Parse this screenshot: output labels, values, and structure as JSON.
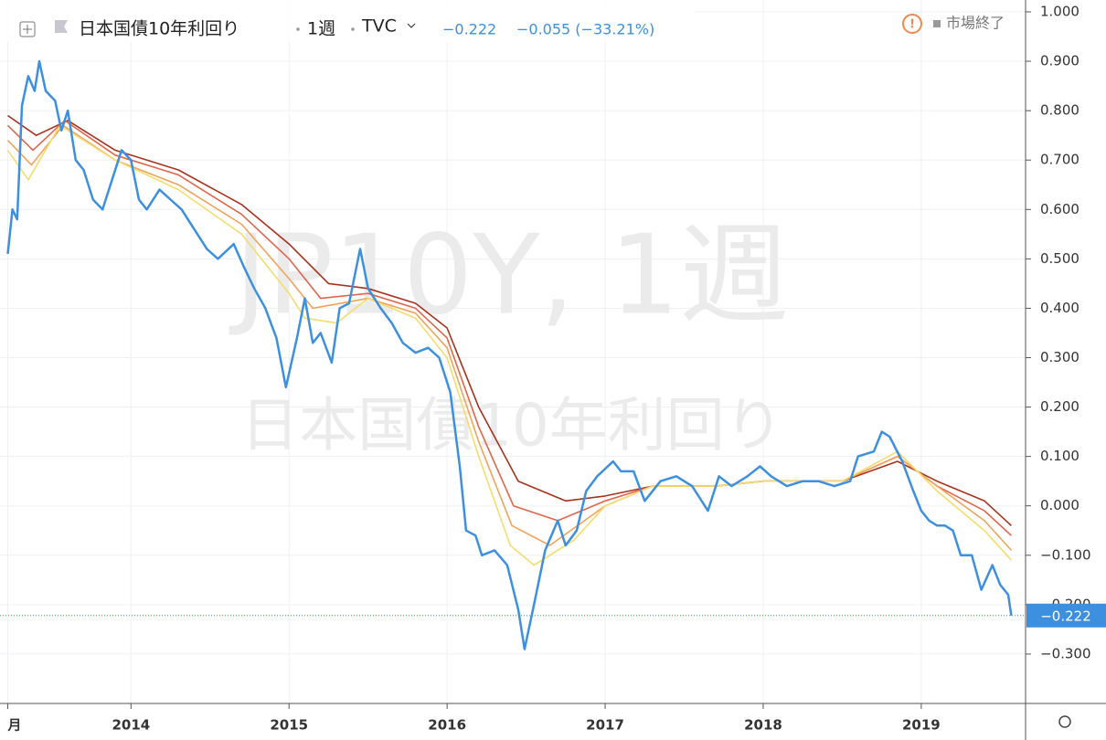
{
  "chart_data": {
    "type": "line",
    "title": "日本国債10年利回り",
    "interval": "1週",
    "exchange": "TVC",
    "last_value_label": "−0.222",
    "change_label": "−0.055 (−33.21%)",
    "status": "市場終了",
    "watermark": "JP10Y, 1週",
    "watermark_subtitle": "日本国債10年利回り",
    "grid": true,
    "xlim": [
      2013.2,
      2019.66
    ],
    "ylim": [
      -0.4,
      1.024
    ],
    "xticks": [
      {
        "value": 2013.22,
        "label": "月"
      },
      2014,
      2015,
      2016,
      2017,
      2018,
      2019
    ],
    "yticks": [
      {
        "value": 1,
        "label": "1.000"
      },
      {
        "value": 0.9,
        "label": "0.900"
      },
      {
        "value": 0.8,
        "label": "0.800"
      },
      {
        "value": 0.7,
        "label": "0.700"
      },
      {
        "value": 0.6,
        "label": "0.600"
      },
      {
        "value": 0.5,
        "label": "0.500"
      },
      {
        "value": 0.4,
        "label": "0.400"
      },
      {
        "value": 0.3,
        "label": "0.300"
      },
      {
        "value": 0.2,
        "label": "0.200"
      },
      {
        "value": 0.1,
        "label": "0.100"
      },
      {
        "value": 0,
        "label": "0.000"
      },
      {
        "value": -0.1,
        "label": "−0.100"
      },
      {
        "value": -0.2,
        "label": "−0.200"
      },
      {
        "value": -0.3,
        "label": "−0.300"
      }
    ],
    "series": [
      {
        "color": "#a8321e",
        "x": [
          2013.22,
          2013.4,
          2013.6,
          2013.9,
          2014.3,
          2014.7,
          2015.0,
          2015.25,
          2015.5,
          2015.8,
          2016.0,
          2016.2,
          2016.45,
          2016.75,
          2017.0,
          2017.3,
          2017.7,
          2018.0,
          2018.5,
          2018.85,
          2019.1,
          2019.4,
          2019.57
        ],
        "values": [
          0.79,
          0.75,
          0.78,
          0.72,
          0.68,
          0.61,
          0.53,
          0.45,
          0.44,
          0.41,
          0.36,
          0.2,
          0.05,
          0.01,
          0.02,
          0.04,
          0.04,
          0.05,
          0.05,
          0.09,
          0.05,
          0.01,
          -0.04
        ]
      },
      {
        "color": "#e2654b",
        "x": [
          2013.22,
          2013.38,
          2013.58,
          2013.9,
          2014.3,
          2014.7,
          2015.0,
          2015.2,
          2015.5,
          2015.8,
          2016.0,
          2016.2,
          2016.42,
          2016.7,
          2017.0,
          2017.3,
          2017.7,
          2018.0,
          2018.5,
          2018.85,
          2019.1,
          2019.4,
          2019.57
        ],
        "values": [
          0.77,
          0.72,
          0.78,
          0.71,
          0.67,
          0.59,
          0.5,
          0.42,
          0.43,
          0.4,
          0.34,
          0.16,
          0.0,
          -0.03,
          0.01,
          0.04,
          0.04,
          0.05,
          0.05,
          0.1,
          0.04,
          -0.01,
          -0.06
        ]
      },
      {
        "color": "#f2a35a",
        "x": [
          2013.22,
          2013.37,
          2013.57,
          2013.9,
          2014.3,
          2014.7,
          2015.0,
          2015.15,
          2015.5,
          2015.8,
          2016.0,
          2016.2,
          2016.41,
          2016.65,
          2017.0,
          2017.3,
          2017.7,
          2018.0,
          2018.5,
          2018.85,
          2019.1,
          2019.4,
          2019.57
        ],
        "values": [
          0.74,
          0.69,
          0.77,
          0.7,
          0.65,
          0.57,
          0.46,
          0.4,
          0.42,
          0.39,
          0.32,
          0.13,
          -0.04,
          -0.08,
          0.0,
          0.04,
          0.04,
          0.05,
          0.05,
          0.1,
          0.04,
          -0.03,
          -0.09
        ]
      },
      {
        "color": "#f4dd6e",
        "x": [
          2013.22,
          2013.35,
          2013.55,
          2013.9,
          2014.3,
          2014.7,
          2015.0,
          2015.1,
          2015.3,
          2015.5,
          2015.8,
          2016.0,
          2016.2,
          2016.4,
          2016.55,
          2016.8,
          2017.0,
          2017.3,
          2017.7,
          2018.0,
          2018.5,
          2018.85,
          2019.1,
          2019.4,
          2019.57
        ],
        "values": [
          0.72,
          0.66,
          0.77,
          0.7,
          0.64,
          0.55,
          0.43,
          0.38,
          0.37,
          0.42,
          0.38,
          0.3,
          0.1,
          -0.08,
          -0.12,
          -0.07,
          0.0,
          0.04,
          0.04,
          0.05,
          0.05,
          0.11,
          0.03,
          -0.05,
          -0.11
        ]
      },
      {
        "color": "#3d8fe0",
        "x": [
          2013.22,
          2013.25,
          2013.28,
          2013.31,
          2013.35,
          2013.39,
          2013.42,
          2013.46,
          2013.52,
          2013.56,
          2013.6,
          2013.65,
          2013.7,
          2013.76,
          2013.82,
          2013.88,
          2013.94,
          2014.0,
          2014.05,
          2014.1,
          2014.18,
          2014.25,
          2014.32,
          2014.4,
          2014.48,
          2014.55,
          2014.65,
          2014.72,
          2014.78,
          2014.85,
          2014.92,
          2014.98,
          2015.05,
          2015.1,
          2015.15,
          2015.2,
          2015.27,
          2015.32,
          2015.38,
          2015.45,
          2015.5,
          2015.58,
          2015.65,
          2015.72,
          2015.8,
          2015.88,
          2015.95,
          2016.02,
          2016.08,
          2016.12,
          2016.18,
          2016.22,
          2016.3,
          2016.38,
          2016.45,
          2016.49,
          2016.55,
          2016.62,
          2016.7,
          2016.75,
          2016.82,
          2016.88,
          2016.95,
          2017.05,
          2017.1,
          2017.18,
          2017.25,
          2017.35,
          2017.45,
          2017.55,
          2017.65,
          2017.72,
          2017.8,
          2017.9,
          2017.98,
          2018.05,
          2018.15,
          2018.25,
          2018.35,
          2018.45,
          2018.55,
          2018.6,
          2018.7,
          2018.75,
          2018.8,
          2018.88,
          2018.95,
          2019.0,
          2019.05,
          2019.1,
          2019.15,
          2019.2,
          2019.25,
          2019.32,
          2019.38,
          2019.45,
          2019.5,
          2019.55,
          2019.57
        ],
        "values": [
          0.51,
          0.6,
          0.58,
          0.81,
          0.87,
          0.84,
          0.9,
          0.84,
          0.82,
          0.76,
          0.8,
          0.7,
          0.68,
          0.62,
          0.6,
          0.66,
          0.72,
          0.7,
          0.62,
          0.6,
          0.64,
          0.62,
          0.6,
          0.56,
          0.52,
          0.5,
          0.53,
          0.48,
          0.44,
          0.4,
          0.34,
          0.24,
          0.34,
          0.42,
          0.33,
          0.35,
          0.29,
          0.4,
          0.41,
          0.52,
          0.44,
          0.4,
          0.37,
          0.33,
          0.31,
          0.32,
          0.3,
          0.23,
          0.08,
          -0.05,
          -0.06,
          -0.1,
          -0.09,
          -0.12,
          -0.21,
          -0.29,
          -0.2,
          -0.09,
          -0.03,
          -0.08,
          -0.05,
          0.03,
          0.06,
          0.09,
          0.07,
          0.07,
          0.01,
          0.05,
          0.06,
          0.04,
          -0.01,
          0.06,
          0.04,
          0.06,
          0.08,
          0.06,
          0.04,
          0.05,
          0.05,
          0.04,
          0.05,
          0.1,
          0.11,
          0.15,
          0.14,
          0.09,
          0.03,
          -0.01,
          -0.03,
          -0.04,
          -0.04,
          -0.05,
          -0.1,
          -0.1,
          -0.17,
          -0.12,
          -0.16,
          -0.18,
          -0.222
        ]
      }
    ]
  }
}
